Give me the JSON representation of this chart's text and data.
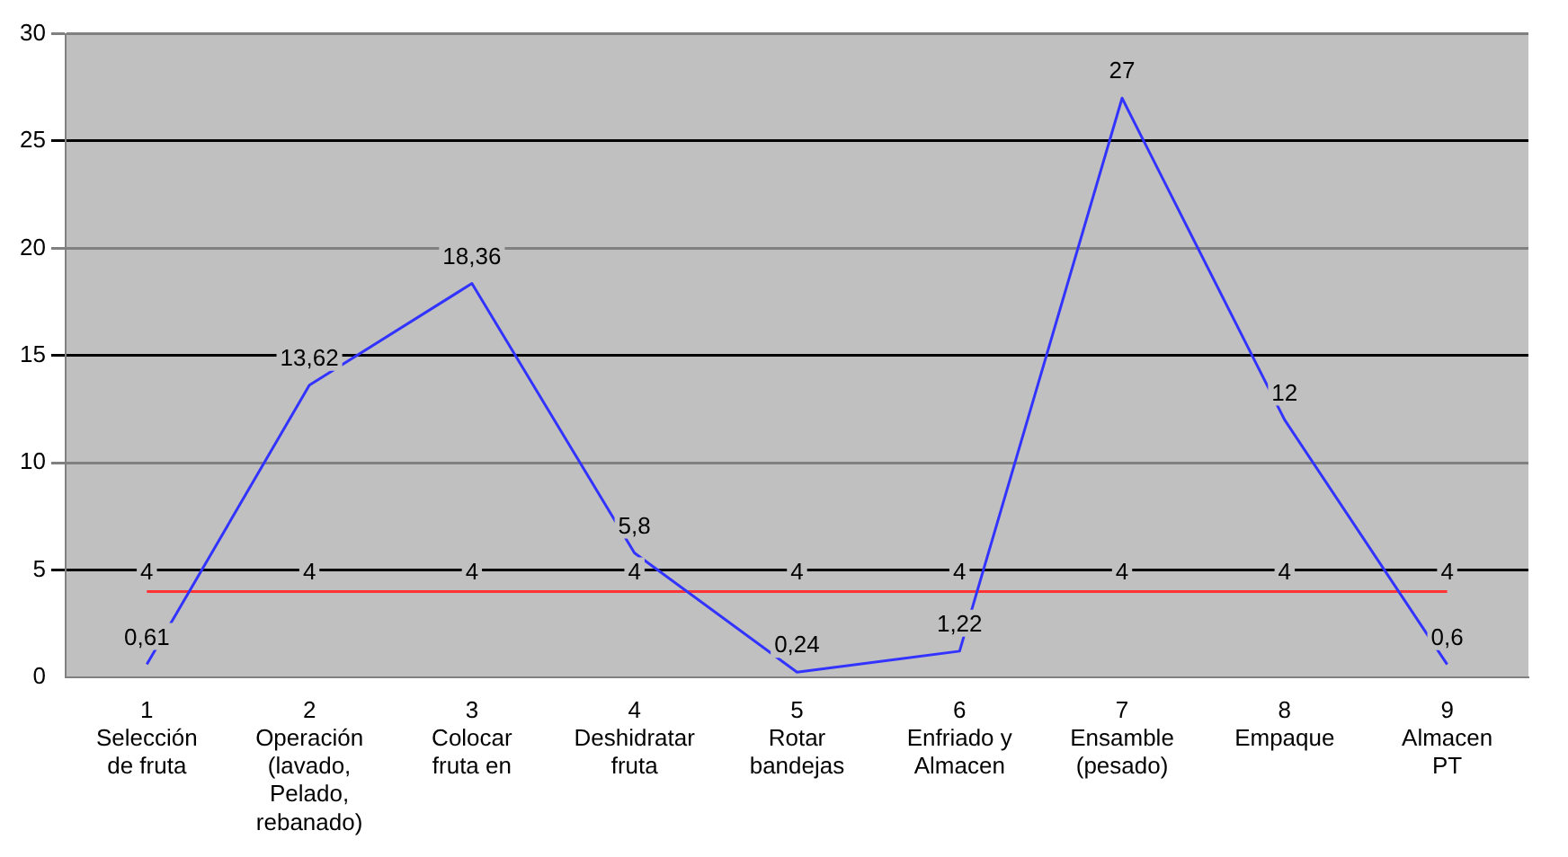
{
  "chart_data": {
    "type": "line",
    "categories": [
      "1\nSelección\nde fruta",
      "2\nOperación\n(lavado,\nPelado,\nrebanado)",
      "3\nColocar\nfruta en",
      "4\nDeshidratar\nfruta",
      "5\nRotar\nbandejas",
      "6\nEnfriado y\nAlmacen",
      "7\nEnsamble\n(pesado)",
      "8\nEmpaque",
      "9\nAlmacen\nPT"
    ],
    "series": [
      {
        "color": "#3333ff",
        "values": [
          0.61,
          13.62,
          18.36,
          5.8,
          0.24,
          1.22,
          27,
          12,
          0.6
        ],
        "value_labels": [
          "0,61",
          "13,62",
          "18,36",
          "5,8",
          "0,24",
          "1,22",
          "27",
          "12",
          "0,6"
        ]
      },
      {
        "color": "#ff3333",
        "values": [
          4,
          4,
          4,
          4,
          4,
          4,
          4,
          4,
          4
        ],
        "value_labels": [
          "4",
          "4",
          "4",
          "4",
          "4",
          "4",
          "4",
          "4",
          "4"
        ]
      }
    ],
    "ylim": [
      0,
      30
    ],
    "yticks": [
      0,
      5,
      10,
      15,
      20,
      25,
      30
    ],
    "grid": "y",
    "legend": false,
    "marker": "none",
    "line_style": "solid"
  }
}
